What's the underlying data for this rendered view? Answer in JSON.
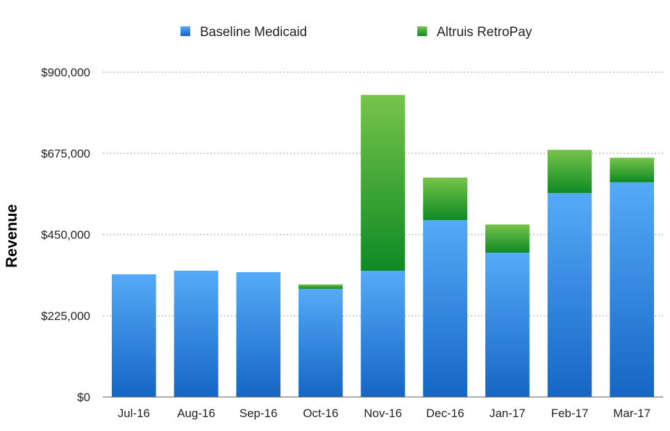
{
  "chart_data": {
    "type": "bar",
    "stacked": true,
    "categories": [
      "Jul-16",
      "Aug-16",
      "Sep-16",
      "Oct-16",
      "Nov-16",
      "Dec-16",
      "Jan-17",
      "Feb-17",
      "Mar-17"
    ],
    "series": [
      {
        "name": "Baseline Medicaid",
        "color": "#2a86de",
        "values": [
          340000,
          350000,
          346000,
          300000,
          350000,
          490000,
          400000,
          565000,
          595000
        ]
      },
      {
        "name": "Altruis RetroPay",
        "color": "#3aa53a",
        "values": [
          0,
          0,
          0,
          12000,
          487000,
          118000,
          78000,
          120000,
          68000
        ]
      }
    ],
    "title": "",
    "xlabel": "",
    "ylabel": "Revenue",
    "ylim": [
      0,
      900000
    ],
    "yticks": [
      0,
      225000,
      450000,
      675000,
      900000
    ],
    "ytick_labels": [
      "$0",
      "$225,000",
      "$450,000",
      "$675,000",
      "$900,000"
    ],
    "grid": "horizontal dotted",
    "legend_position": "top-center"
  }
}
